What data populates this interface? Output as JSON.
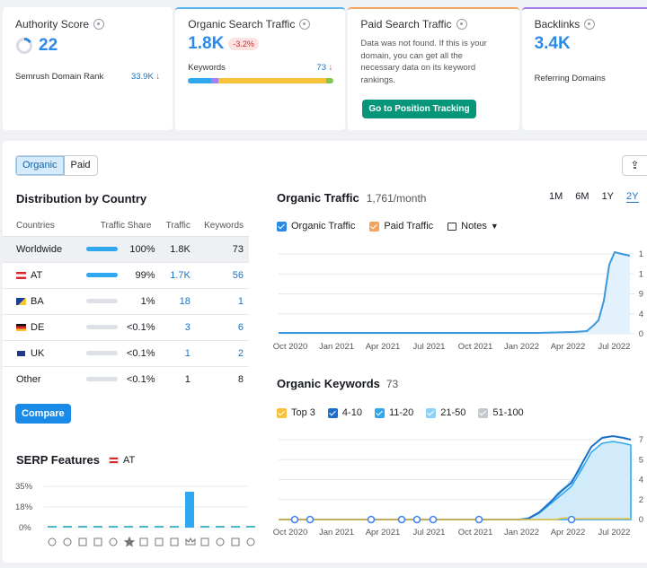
{
  "cards": {
    "authority": {
      "title": "Authority Score",
      "value": "22",
      "sub_label": "Semrush Domain Rank",
      "sub_value": "33.9K"
    },
    "organic": {
      "title": "Organic Search Traffic",
      "value": "1.8K",
      "change": "-3.2%",
      "sub_label": "Keywords",
      "sub_value": "73"
    },
    "paid": {
      "title": "Paid Search Traffic",
      "message": "Data was not found. If this is your domain, you can get all the necessary data on its keyword rankings.",
      "button": "Go to Position Tracking"
    },
    "backlinks": {
      "title": "Backlinks",
      "value": "3.4K",
      "sub_label": "Referring Domains"
    }
  },
  "tabs": {
    "organic": "Organic",
    "paid": "Paid"
  },
  "distribution": {
    "title": "Distribution by Country",
    "headers": {
      "country": "Countries",
      "share": "Traffic Share",
      "traffic": "Traffic",
      "keywords": "Keywords"
    },
    "rows": [
      {
        "country": "Worldwide",
        "share": "100%",
        "traffic": "1.8K",
        "keywords": "73",
        "fill": 1.0
      },
      {
        "country": "AT",
        "share": "99%",
        "traffic": "1.7K",
        "keywords": "56",
        "fill": 0.99
      },
      {
        "country": "BA",
        "share": "1%",
        "traffic": "18",
        "keywords": "1",
        "fill": 0.01
      },
      {
        "country": "DE",
        "share": "<0.1%",
        "traffic": "3",
        "keywords": "6",
        "fill": 0
      },
      {
        "country": "UK",
        "share": "<0.1%",
        "traffic": "1",
        "keywords": "2",
        "fill": 0
      },
      {
        "country": "Other",
        "share": "<0.1%",
        "traffic": "1",
        "keywords": "8",
        "fill": 0
      }
    ],
    "compare_button": "Compare"
  },
  "serp": {
    "title": "SERP Features",
    "country": "AT",
    "y_ticks": [
      "35%",
      "18%",
      "0%"
    ]
  },
  "organic_traffic": {
    "title": "Organic Traffic",
    "value": "1,761/month",
    "periods": [
      "1M",
      "6M",
      "1Y",
      "2Y"
    ],
    "legend": {
      "organic": "Organic Traffic",
      "paid": "Paid Traffic",
      "notes": "Notes"
    },
    "x_labels": [
      "Oct 2020",
      "Jan 2021",
      "Apr 2021",
      "Jul 2021",
      "Oct 2021",
      "Jan 2022",
      "Apr 2022",
      "Jul 2022"
    ],
    "y_labels": [
      "1",
      "1",
      "9",
      "4",
      "0"
    ]
  },
  "organic_keywords": {
    "title": "Organic Keywords",
    "value": "73",
    "legend": [
      "Top 3",
      "4-10",
      "11-20",
      "21-50",
      "51-100"
    ],
    "x_labels": [
      "Oct 2020",
      "Jan 2021",
      "Apr 2021",
      "Jul 2021",
      "Oct 2021",
      "Jan 2022",
      "Apr 2022",
      "Jul 2022"
    ],
    "y_labels": [
      "7",
      "5",
      "4",
      "2",
      "0"
    ]
  },
  "colors": {
    "accent": "#2b8ae8",
    "green": "#08967a",
    "orange": "#f4a35c",
    "yellow": "#f8c23a",
    "purple": "#a57ef0"
  }
}
